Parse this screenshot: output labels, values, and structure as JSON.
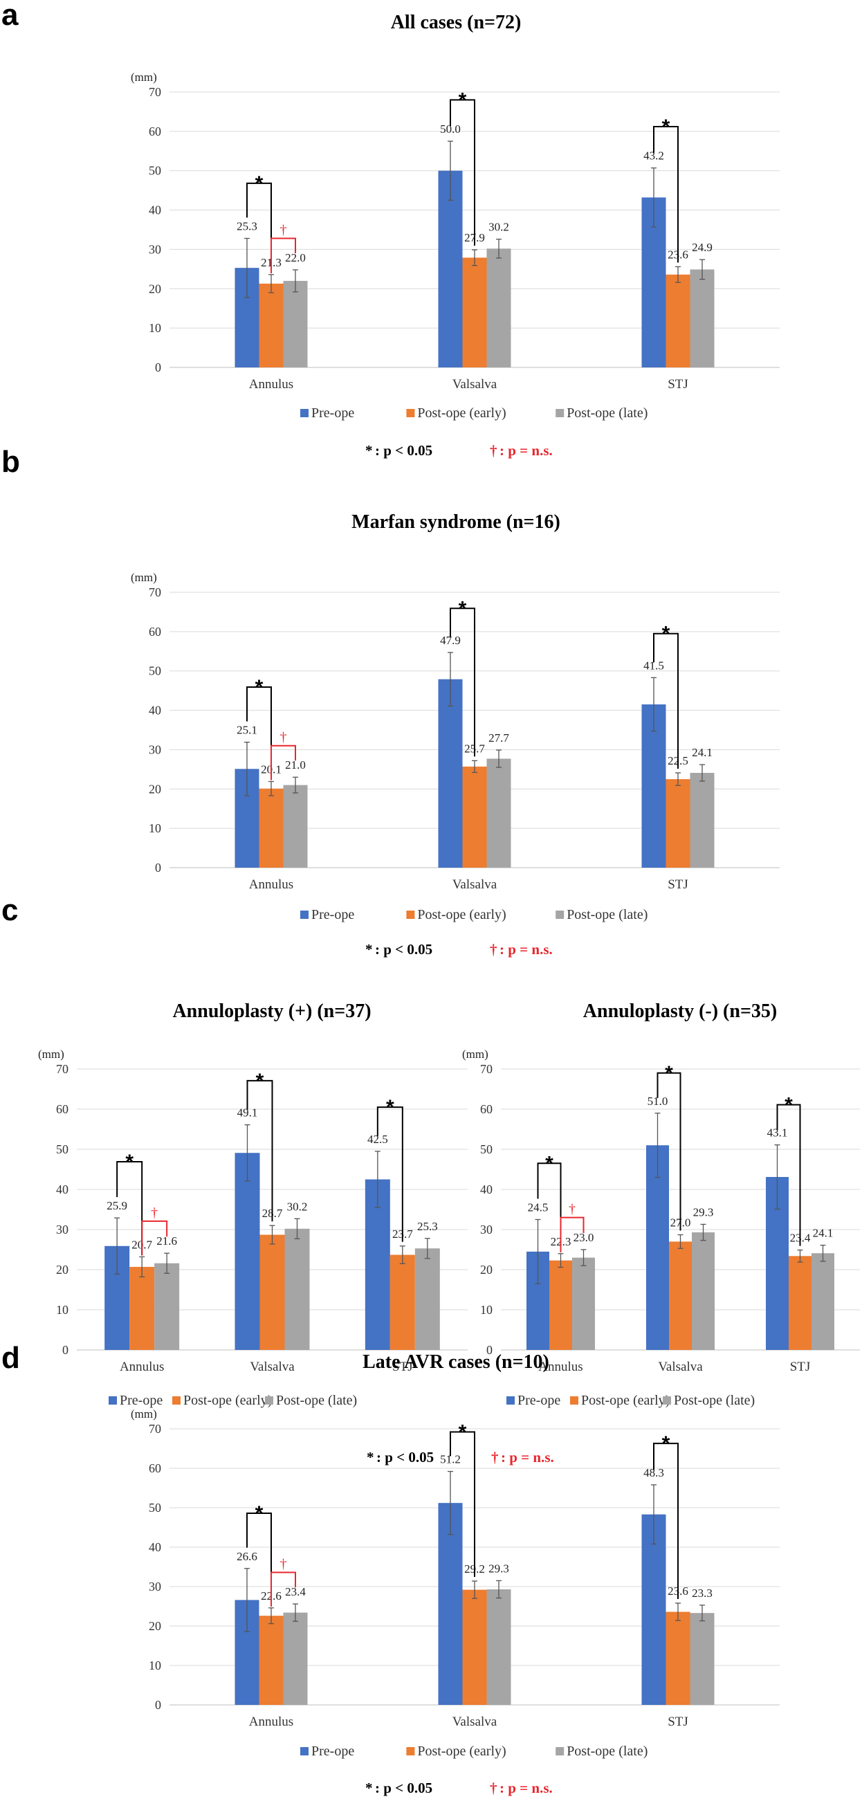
{
  "colors": {
    "pre": "#4472c4",
    "early": "#ed7d31",
    "late": "#a5a5a5",
    "sig": "#000000",
    "ns": "#e8262d",
    "grid": "#d9d9d9"
  },
  "legend": {
    "pre": "Pre-ope",
    "early": "Post-ope (early)",
    "late": "Post-ope (late)"
  },
  "notes": {
    "sig_symbol": "*",
    "sig_text": ": p < 0.05",
    "ns_symbol": "†",
    "ns_text": ": p = n.s."
  },
  "unit": "(mm)",
  "yticks": [
    "0",
    "10",
    "20",
    "30",
    "40",
    "50",
    "60",
    "70"
  ],
  "sections": [
    {
      "letter": "a"
    },
    {
      "letter": "b"
    },
    {
      "letter": "c"
    },
    {
      "letter": "d"
    }
  ],
  "chart_data": [
    {
      "type": "bar",
      "panel": "a",
      "title": "All cases (n=72)",
      "ylabel": "(mm)",
      "ylim": [
        0,
        70
      ],
      "categories": [
        "Annulus",
        "Valsalva",
        "STJ"
      ],
      "series": [
        {
          "name": "Pre-ope",
          "values": [
            25.3,
            50.0,
            43.2
          ],
          "errors": [
            7.5,
            7.5,
            7.5
          ],
          "labels": [
            "25.3",
            "50.0",
            "43.2"
          ]
        },
        {
          "name": "Post-ope (early)",
          "values": [
            21.3,
            27.9,
            23.6
          ],
          "errors": [
            2.3,
            2.0,
            2.0
          ],
          "labels": [
            "21.3",
            "27.9",
            "23.6"
          ]
        },
        {
          "name": "Post-ope (late)",
          "values": [
            22.0,
            30.2,
            24.9
          ],
          "errors": [
            2.8,
            2.4,
            2.5
          ],
          "labels": [
            "22.0",
            "30.2",
            "24.9"
          ]
        }
      ],
      "brackets": [
        {
          "category": 0,
          "from": 0,
          "to": 1,
          "symbol": "*",
          "kind": "sig"
        },
        {
          "category": 0,
          "from": 1,
          "to": 2,
          "symbol": "†",
          "kind": "ns"
        },
        {
          "category": 1,
          "from": 0,
          "to": 1,
          "symbol": "*",
          "kind": "sig"
        },
        {
          "category": 2,
          "from": 0,
          "to": 1,
          "symbol": "*",
          "kind": "sig"
        }
      ]
    },
    {
      "type": "bar",
      "panel": "b",
      "title": "Marfan syndrome (n=16)",
      "ylabel": "(mm)",
      "ylim": [
        0,
        70
      ],
      "categories": [
        "Annulus",
        "Valsalva",
        "STJ"
      ],
      "series": [
        {
          "name": "Pre-ope",
          "values": [
            25.1,
            47.9,
            41.5
          ],
          "errors": [
            6.8,
            6.8,
            6.8
          ],
          "labels": [
            "25.1",
            "47.9",
            "41.5"
          ]
        },
        {
          "name": "Post-ope (early)",
          "values": [
            20.1,
            25.7,
            22.5
          ],
          "errors": [
            1.8,
            1.5,
            1.6
          ],
          "labels": [
            "20.1",
            "25.7",
            "22.5"
          ]
        },
        {
          "name": "Post-ope (late)",
          "values": [
            21.0,
            27.7,
            24.1
          ],
          "errors": [
            2.0,
            2.2,
            2.1
          ],
          "labels": [
            "21.0",
            "27.7",
            "24.1"
          ]
        }
      ],
      "brackets": [
        {
          "category": 0,
          "from": 0,
          "to": 1,
          "symbol": "*",
          "kind": "sig"
        },
        {
          "category": 0,
          "from": 1,
          "to": 2,
          "symbol": "†",
          "kind": "ns"
        },
        {
          "category": 1,
          "from": 0,
          "to": 1,
          "symbol": "*",
          "kind": "sig"
        },
        {
          "category": 2,
          "from": 0,
          "to": 1,
          "symbol": "*",
          "kind": "sig"
        }
      ]
    },
    {
      "type": "bar",
      "panel": "c-left",
      "title": "Annuloplasty (+) (n=37)",
      "ylabel": "(mm)",
      "ylim": [
        0,
        70
      ],
      "categories": [
        "Annulus",
        "Valsalva",
        "STJ"
      ],
      "series": [
        {
          "name": "Pre-ope",
          "values": [
            25.9,
            49.1,
            42.5
          ],
          "errors": [
            7.0,
            7.0,
            7.0
          ],
          "labels": [
            "25.9",
            "49.1",
            "42.5"
          ]
        },
        {
          "name": "Post-ope (early)",
          "values": [
            20.7,
            28.7,
            23.7
          ],
          "errors": [
            2.5,
            2.3,
            2.2
          ],
          "labels": [
            "20.7",
            "28.7",
            "23.7"
          ]
        },
        {
          "name": "Post-ope (late)",
          "values": [
            21.6,
            30.2,
            25.3
          ],
          "errors": [
            2.5,
            2.5,
            2.5
          ],
          "labels": [
            "21.6",
            "30.2",
            "25.3"
          ]
        }
      ],
      "brackets": [
        {
          "category": 0,
          "from": 0,
          "to": 1,
          "symbol": "*",
          "kind": "sig"
        },
        {
          "category": 0,
          "from": 1,
          "to": 2,
          "symbol": "†",
          "kind": "ns"
        },
        {
          "category": 1,
          "from": 0,
          "to": 1,
          "symbol": "*",
          "kind": "sig"
        },
        {
          "category": 2,
          "from": 0,
          "to": 1,
          "symbol": "*",
          "kind": "sig"
        }
      ]
    },
    {
      "type": "bar",
      "panel": "c-right",
      "title": "Annuloplasty (-) (n=35)",
      "ylabel": "(mm)",
      "ylim": [
        0,
        70
      ],
      "categories": [
        "Annulus",
        "Valsalva",
        "STJ"
      ],
      "series": [
        {
          "name": "Pre-ope",
          "values": [
            24.5,
            51.0,
            43.1
          ],
          "errors": [
            8.0,
            8.0,
            8.0
          ],
          "labels": [
            "24.5",
            "51.0",
            "43.1"
          ]
        },
        {
          "name": "Post-ope (early)",
          "values": [
            22.3,
            27.0,
            23.4
          ],
          "errors": [
            1.7,
            1.7,
            1.5
          ],
          "labels": [
            "22.3",
            "27.0",
            "23.4"
          ]
        },
        {
          "name": "Post-ope (late)",
          "values": [
            23.0,
            29.3,
            24.1
          ],
          "errors": [
            2.0,
            2.0,
            2.0
          ],
          "labels": [
            "23.0",
            "29.3",
            "24.1"
          ]
        }
      ],
      "brackets": [
        {
          "category": 0,
          "from": 0,
          "to": 1,
          "symbol": "*",
          "kind": "sig"
        },
        {
          "category": 0,
          "from": 1,
          "to": 2,
          "symbol": "†",
          "kind": "ns"
        },
        {
          "category": 1,
          "from": 0,
          "to": 1,
          "symbol": "*",
          "kind": "sig"
        },
        {
          "category": 2,
          "from": 0,
          "to": 1,
          "symbol": "*",
          "kind": "sig"
        }
      ]
    },
    {
      "type": "bar",
      "panel": "d",
      "title": "Late AVR cases (n=10)",
      "ylabel": "(mm)",
      "ylim": [
        0,
        70
      ],
      "categories": [
        "Annulus",
        "Valsalva",
        "STJ"
      ],
      "series": [
        {
          "name": "Pre-ope",
          "values": [
            26.6,
            51.2,
            48.3
          ],
          "errors": [
            8.0,
            8.0,
            7.5
          ],
          "labels": [
            "26.6",
            "51.2",
            "48.3"
          ]
        },
        {
          "name": "Post-ope (early)",
          "values": [
            22.6,
            29.2,
            23.6
          ],
          "errors": [
            2.0,
            2.2,
            2.2
          ],
          "labels": [
            "22.6",
            "29.2",
            "23.6"
          ]
        },
        {
          "name": "Post-ope (late)",
          "values": [
            23.4,
            29.3,
            23.3
          ],
          "errors": [
            2.2,
            2.2,
            2.0
          ],
          "labels": [
            "23.4",
            "29.3",
            "23.3"
          ]
        }
      ],
      "brackets": [
        {
          "category": 0,
          "from": 0,
          "to": 1,
          "symbol": "*",
          "kind": "sig"
        },
        {
          "category": 0,
          "from": 1,
          "to": 2,
          "symbol": "†",
          "kind": "ns"
        },
        {
          "category": 1,
          "from": 0,
          "to": 1,
          "symbol": "*",
          "kind": "sig"
        },
        {
          "category": 2,
          "from": 0,
          "to": 1,
          "symbol": "*",
          "kind": "sig"
        }
      ]
    }
  ]
}
